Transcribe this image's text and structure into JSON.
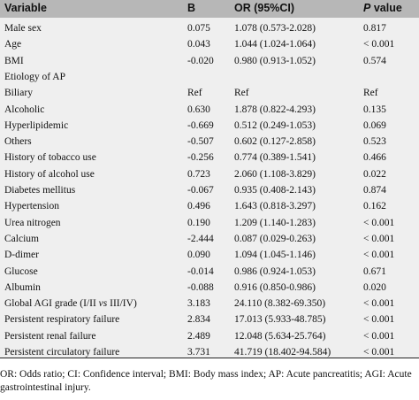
{
  "table": {
    "headers": {
      "variable": "Variable",
      "b": "B",
      "or": "OR (95%CI)",
      "p_italic": "P",
      "p_rest": " value"
    },
    "rows": [
      {
        "variable": "Male sex",
        "b": "0.075",
        "or": "1.078 (0.573-2.028)",
        "p": "0.817"
      },
      {
        "variable": "Age",
        "b": "0.043",
        "or": "1.044 (1.024-1.064)",
        "p": "< 0.001"
      },
      {
        "variable": "BMI",
        "b": "-0.020",
        "or": "0.980 (0.913-1.052)",
        "p": "0.574"
      },
      {
        "variable": "Etiology of AP",
        "b": "",
        "or": "",
        "p": ""
      },
      {
        "variable": "Biliary",
        "b": "Ref",
        "or": "Ref",
        "p": "Ref"
      },
      {
        "variable": "Alcoholic",
        "b": "0.630",
        "or": "1.878 (0.822-4.293)",
        "p": "0.135"
      },
      {
        "variable": "Hyperlipidemic",
        "b": "-0.669",
        "or": "0.512 (0.249-1.053)",
        "p": "0.069"
      },
      {
        "variable": "Others",
        "b": "-0.507",
        "or": "0.602 (0.127-2.858)",
        "p": "0.523"
      },
      {
        "variable": "History of tobacco use",
        "b": "-0.256",
        "or": "0.774 (0.389-1.541)",
        "p": "0.466"
      },
      {
        "variable": "History of alcohol use",
        "b": "0.723",
        "or": "2.060 (1.108-3.829)",
        "p": "0.022"
      },
      {
        "variable": "Diabetes mellitus",
        "b": "-0.067",
        "or": "0.935 (0.408-2.143)",
        "p": "0.874"
      },
      {
        "variable": "Hypertension",
        "b": "0.496",
        "or": "1.643 (0.818-3.297)",
        "p": "0.162"
      },
      {
        "variable": "Urea nitrogen",
        "b": "0.190",
        "or": "1.209 (1.140-1.283)",
        "p": "< 0.001"
      },
      {
        "variable": "Calcium",
        "b": "-2.444",
        "or": "0.087 (0.029-0.263)",
        "p": "< 0.001"
      },
      {
        "variable": "D-dimer",
        "b": "0.090",
        "or": "1.094 (1.045-1.146)",
        "p": "< 0.001"
      },
      {
        "variable": "Glucose",
        "b": "-0.014",
        "or": "0.986 (0.924-1.053)",
        "p": "0.671"
      },
      {
        "variable": "Albumin",
        "b": "-0.088",
        "or": "0.916 (0.850-0.986)",
        "p": "0.020"
      },
      {
        "variable": "Global AGI grade (I/II vs III/IV)",
        "b": "3.183",
        "or": "24.110 (8.382-69.350)",
        "p": "< 0.001"
      },
      {
        "variable": "Persistent respiratory failure",
        "b": "2.834",
        "or": "17.013 (5.933-48.785)",
        "p": "< 0.001"
      },
      {
        "variable": "Persistent renal failure",
        "b": "2.489",
        "or": "12.048 (5.634-25.764)",
        "p": "< 0.001"
      },
      {
        "variable": "Persistent circulatory failure",
        "b": "3.731",
        "or": "41.719 (18.402-94.584)",
        "p": "< 0.001"
      }
    ]
  },
  "footnote": {
    "line1": "OR: Odds ratio; CI: Confidence interval; BMI: Body mass index; AP: Acute pancreatitis; AGI: Acute",
    "line2": "gastrointestinal injury."
  },
  "colors": {
    "header_bg": "#b7b7b7",
    "body_bg": "#efefef",
    "text": "#111111"
  }
}
